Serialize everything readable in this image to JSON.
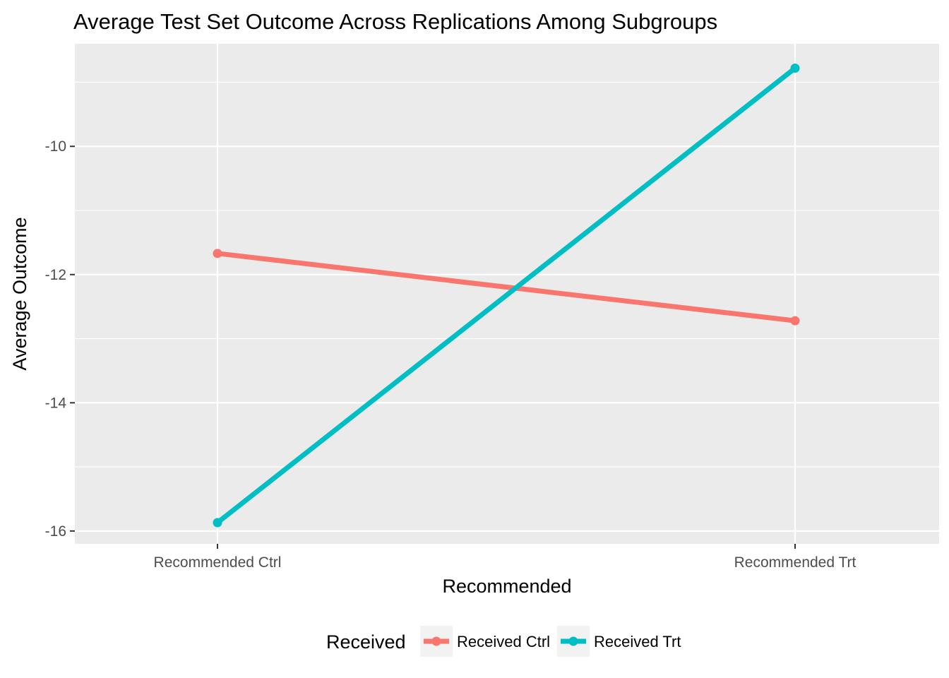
{
  "chart_data": {
    "type": "line",
    "title": "Average Test Set Outcome Across Replications Among Subgroups",
    "xlabel": "Recommended",
    "ylabel": "Average Outcome",
    "categories": [
      "Recommended Ctrl",
      "Recommended Trt"
    ],
    "ylim": [
      -16.2,
      -8.4
    ],
    "yticks": [
      -16,
      -14,
      -12,
      -10
    ],
    "grid": true,
    "legend": {
      "title": "Received",
      "position": "bottom"
    },
    "series": [
      {
        "name": "Received Ctrl",
        "color": "#f8766d",
        "values": [
          -11.67,
          -12.72
        ]
      },
      {
        "name": "Received Trt",
        "color": "#00bfc4",
        "values": [
          -15.87,
          -8.78
        ]
      }
    ]
  },
  "colors": {
    "panel_background": "#ebebeb",
    "grid_major": "#ffffff",
    "tick_text": "#4d4d4d",
    "legend_key_background": "#f2f2f2"
  }
}
